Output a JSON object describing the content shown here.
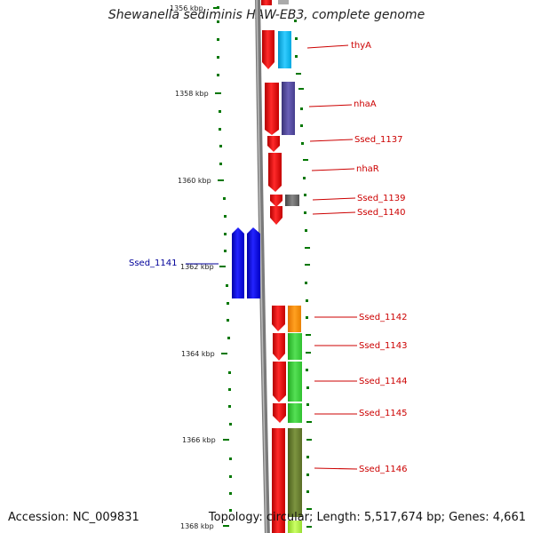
{
  "title": "Shewanella sediminis HAW-EB3, complete genome",
  "accession": "Accession: NC_009831",
  "summary": "Topology: circular; Length: 5,517,674 bp; Genes: 4,661",
  "tick_labels": [
    "1356 kbp",
    "1358 kbp",
    "1360 kbp",
    "1362 kbp",
    "1364 kbp",
    "1366 kbp",
    "1368 kbp"
  ],
  "genes": [
    {
      "label": "thyA",
      "color": "#cc0000"
    },
    {
      "label": "nhaA",
      "color": "#cc0000"
    },
    {
      "label": "Ssed_1137",
      "color": "#cc0000"
    },
    {
      "label": "nhaR",
      "color": "#cc0000"
    },
    {
      "label": "Ssed_1139",
      "color": "#cc0000"
    },
    {
      "label": "Ssed_1140",
      "color": "#cc0000"
    },
    {
      "label": "Ssed_1141",
      "color": "#000099"
    },
    {
      "label": "Ssed_1142",
      "color": "#cc0000"
    },
    {
      "label": "Ssed_1143",
      "color": "#cc0000"
    },
    {
      "label": "Ssed_1144",
      "color": "#cc0000"
    },
    {
      "label": "Ssed_1145",
      "color": "#cc0000"
    },
    {
      "label": "Ssed_1146",
      "color": "#cc0000"
    }
  ],
  "colors": {
    "backbone": "#808080",
    "forward_cds": "#ee0000",
    "reverse_cds": "#0000ee",
    "tick": "#007700"
  }
}
